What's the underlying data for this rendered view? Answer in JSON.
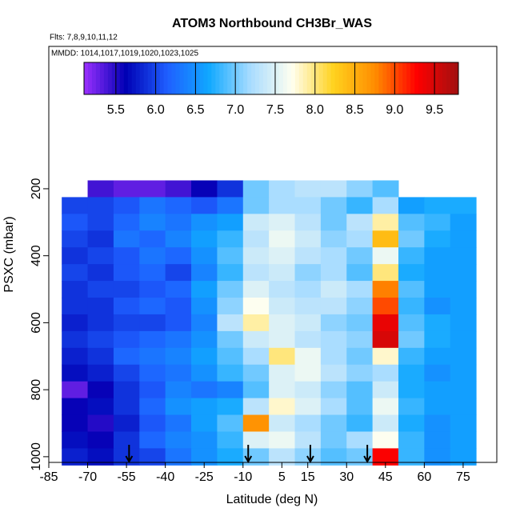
{
  "chart_data": {
    "type": "heatmap",
    "title": "ATOM3 Northbound CH3Br_WAS",
    "subtitle": "Flts: 7,8,9,10,11,12",
    "annotation": "MMDD: 1014,1017,1019,1020,1023,1025",
    "x_label": "Latitude (deg N)",
    "y_label": "PSXC (mbar)",
    "xlim": [
      -85,
      88
    ],
    "ylim": [
      1017,
      -225
    ],
    "xticks": [
      -85,
      -70,
      -55,
      -40,
      -25,
      -10,
      5,
      15,
      30,
      45,
      60,
      75
    ],
    "yticks": [
      200,
      400,
      600,
      800,
      1000
    ],
    "lat_edges": [
      -80,
      -70,
      -60,
      -50,
      -40,
      -30,
      -20,
      -10,
      0,
      10,
      20,
      30,
      40,
      50,
      60,
      70,
      80
    ],
    "pressure_edges": [
      175,
      225,
      275,
      325,
      375,
      425,
      475,
      525,
      575,
      625,
      675,
      725,
      775,
      825,
      875,
      925,
      975,
      1025
    ],
    "values": [
      [
        null,
        5.4,
        5.3,
        5.3,
        5.4,
        5.6,
        5.9,
        7.0,
        7.2,
        7.3,
        7.3,
        7.1,
        6.9,
        null,
        null,
        null
      ],
      [
        6.0,
        6.0,
        6.1,
        6.3,
        6.2,
        6.1,
        6.3,
        7.0,
        7.2,
        7.2,
        7.0,
        6.8,
        7.2,
        6.6,
        6.7,
        6.7
      ],
      [
        6.1,
        6.0,
        6.2,
        6.4,
        6.3,
        6.5,
        6.6,
        7.4,
        7.5,
        7.3,
        7.0,
        7.3,
        7.9,
        6.9,
        6.8,
        6.6
      ],
      [
        6.0,
        5.9,
        6.3,
        6.2,
        6.4,
        6.6,
        6.8,
        7.3,
        7.6,
        7.4,
        7.1,
        7.2,
        8.4,
        7.0,
        6.7,
        6.6
      ],
      [
        5.9,
        6.0,
        6.1,
        6.3,
        6.2,
        6.5,
        6.9,
        7.4,
        7.5,
        7.3,
        7.2,
        7.0,
        7.6,
        6.8,
        6.6,
        6.6
      ],
      [
        6.0,
        5.9,
        6.1,
        6.2,
        6.0,
        6.4,
        6.8,
        7.3,
        7.4,
        7.1,
        7.2,
        6.9,
        8.0,
        6.7,
        6.6,
        6.6
      ],
      [
        5.9,
        6.0,
        6.0,
        6.1,
        6.2,
        6.6,
        7.0,
        7.5,
        7.3,
        7.2,
        7.4,
        7.2,
        8.8,
        6.9,
        6.6,
        6.6
      ],
      [
        5.9,
        5.9,
        6.1,
        6.2,
        6.1,
        6.5,
        7.1,
        7.7,
        7.4,
        7.3,
        7.3,
        7.1,
        9.0,
        6.8,
        6.5,
        6.6
      ],
      [
        5.8,
        5.9,
        6.0,
        6.0,
        6.1,
        6.4,
        7.3,
        7.9,
        7.5,
        7.4,
        7.1,
        7.0,
        9.4,
        6.9,
        6.7,
        6.6
      ],
      [
        5.9,
        6.0,
        6.1,
        6.2,
        6.3,
        6.5,
        7.0,
        7.4,
        7.5,
        7.3,
        7.2,
        7.1,
        9.5,
        7.0,
        6.7,
        6.6
      ],
      [
        5.8,
        5.9,
        6.2,
        6.3,
        6.4,
        6.6,
        6.9,
        7.2,
        8.0,
        7.6,
        7.2,
        7.0,
        7.8,
        6.8,
        6.6,
        6.6
      ],
      [
        5.7,
        5.8,
        6.0,
        6.2,
        6.3,
        6.5,
        6.8,
        7.0,
        7.5,
        7.6,
        7.3,
        7.1,
        7.2,
        6.7,
        6.5,
        6.6
      ],
      [
        5.3,
        5.6,
        5.9,
        6.1,
        6.4,
        6.3,
        6.4,
        6.9,
        7.5,
        7.4,
        7.1,
        6.9,
        7.4,
        6.7,
        6.6,
        6.6
      ],
      [
        5.6,
        5.7,
        5.9,
        6.2,
        6.5,
        6.6,
        6.7,
        7.3,
        7.8,
        7.5,
        7.2,
        6.9,
        7.6,
        6.8,
        6.6,
        6.6
      ],
      [
        5.6,
        5.5,
        5.8,
        6.1,
        6.3,
        6.6,
        6.9,
        8.7,
        7.4,
        7.2,
        7.0,
        6.8,
        7.4,
        6.7,
        6.5,
        6.6
      ],
      [
        5.7,
        5.6,
        5.9,
        6.2,
        6.4,
        6.5,
        6.8,
        7.5,
        7.6,
        7.3,
        7.0,
        7.2,
        7.7,
        6.8,
        6.5,
        6.6
      ],
      [
        5.8,
        5.7,
        5.9,
        6.0,
        6.3,
        6.5,
        6.7,
        7.0,
        7.3,
        7.1,
        6.9,
        7.0,
        9.3,
        6.8,
        6.5,
        6.6
      ]
    ],
    "clim": [
      5.1,
      9.8
    ],
    "colors": [
      "#9b30ff",
      "#0000b4",
      "#1f5fff",
      "#10a8ff",
      "#a8dcff",
      "#fffff0",
      "#ffd21e",
      "#ff8c00",
      "#ff0000",
      "#a01010"
    ],
    "cbticks": [
      5.5,
      {
        "value": 6,
        "label": "6.0"
      },
      6.5,
      {
        "value": 7,
        "label": "7.0"
      },
      7.5,
      {
        "value": 8,
        "label": "8.0"
      },
      8.5,
      {
        "value": 9,
        "label": "9.0"
      },
      9.5
    ],
    "arrows": [
      -54,
      -8,
      16,
      38
    ]
  }
}
